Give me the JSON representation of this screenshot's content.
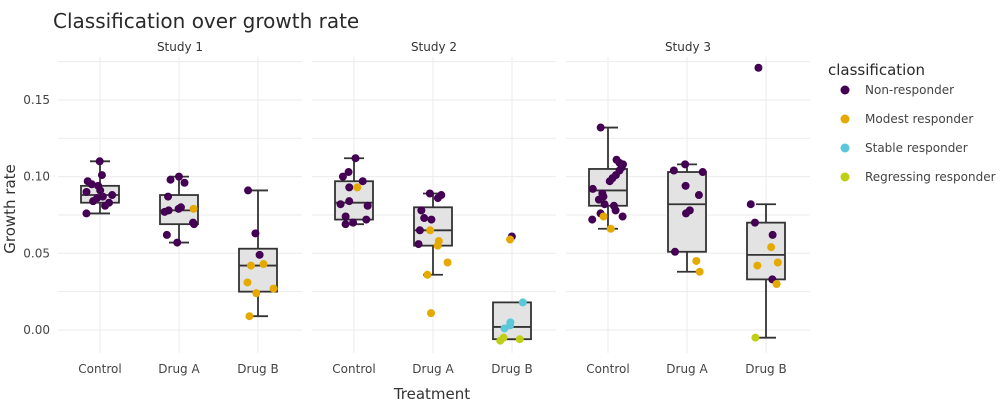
{
  "chart_data": {
    "type": "box",
    "title": "Classification over growth rate",
    "xlabel": "Treatment",
    "ylabel": "Growth rate",
    "ylim": [
      -0.015,
      0.178
    ],
    "yticks": [
      "0.00",
      "0.05",
      "0.10",
      "0.15"
    ],
    "categories": [
      "Control",
      "Drug A",
      "Drug B"
    ],
    "legend": {
      "title": "classification",
      "position": "right",
      "items": [
        {
          "name": "Non-responder",
          "color": "#440154"
        },
        {
          "name": "Modest responder",
          "color": "#E6A902"
        },
        {
          "name": "Stable responder",
          "color": "#5BC8D9"
        },
        {
          "name": "Regressing responder",
          "color": "#BFCF16"
        }
      ]
    },
    "panels": [
      {
        "label": "Study 1",
        "boxes": [
          {
            "category": "Control",
            "min": 0.076,
            "q1": 0.083,
            "median": 0.088,
            "q3": 0.094,
            "max": 0.11,
            "points": [
              {
                "y": 0.11,
                "class": "Non-responder"
              },
              {
                "y": 0.101,
                "class": "Non-responder"
              },
              {
                "y": 0.097,
                "class": "Non-responder"
              },
              {
                "y": 0.095,
                "class": "Non-responder"
              },
              {
                "y": 0.094,
                "class": "Non-responder"
              },
              {
                "y": 0.091,
                "class": "Non-responder"
              },
              {
                "y": 0.09,
                "class": "Non-responder"
              },
              {
                "y": 0.088,
                "class": "Non-responder"
              },
              {
                "y": 0.087,
                "class": "Non-responder"
              },
              {
                "y": 0.086,
                "class": "Non-responder"
              },
              {
                "y": 0.084,
                "class": "Non-responder"
              },
              {
                "y": 0.083,
                "class": "Non-responder"
              },
              {
                "y": 0.081,
                "class": "Non-responder"
              },
              {
                "y": 0.076,
                "class": "Non-responder"
              }
            ]
          },
          {
            "category": "Drug A",
            "min": 0.057,
            "q1": 0.069,
            "median": 0.078,
            "q3": 0.088,
            "max": 0.1,
            "points": [
              {
                "y": 0.1,
                "class": "Non-responder"
              },
              {
                "y": 0.098,
                "class": "Non-responder"
              },
              {
                "y": 0.096,
                "class": "Non-responder"
              },
              {
                "y": 0.087,
                "class": "Non-responder"
              },
              {
                "y": 0.08,
                "class": "Non-responder"
              },
              {
                "y": 0.079,
                "class": "Non-responder"
              },
              {
                "y": 0.078,
                "class": "Non-responder"
              },
              {
                "y": 0.077,
                "class": "Non-responder"
              },
              {
                "y": 0.07,
                "class": "Non-responder"
              },
              {
                "y": 0.069,
                "class": "Non-responder"
              },
              {
                "y": 0.062,
                "class": "Non-responder"
              },
              {
                "y": 0.057,
                "class": "Non-responder"
              },
              {
                "y": 0.079,
                "class": "Modest responder"
              }
            ]
          },
          {
            "category": "Drug B",
            "min": 0.009,
            "q1": 0.025,
            "median": 0.042,
            "q3": 0.053,
            "max": 0.091,
            "points": [
              {
                "y": 0.091,
                "class": "Non-responder"
              },
              {
                "y": 0.063,
                "class": "Non-responder"
              },
              {
                "y": 0.049,
                "class": "Non-responder"
              },
              {
                "y": 0.043,
                "class": "Modest responder"
              },
              {
                "y": 0.042,
                "class": "Modest responder"
              },
              {
                "y": 0.031,
                "class": "Modest responder"
              },
              {
                "y": 0.027,
                "class": "Modest responder"
              },
              {
                "y": 0.024,
                "class": "Modest responder"
              },
              {
                "y": 0.009,
                "class": "Modest responder"
              }
            ]
          }
        ]
      },
      {
        "label": "Study 2",
        "boxes": [
          {
            "category": "Control",
            "min": 0.069,
            "q1": 0.072,
            "median": 0.083,
            "q3": 0.097,
            "max": 0.112,
            "points": [
              {
                "y": 0.112,
                "class": "Non-responder"
              },
              {
                "y": 0.103,
                "class": "Non-responder"
              },
              {
                "y": 0.1,
                "class": "Non-responder"
              },
              {
                "y": 0.097,
                "class": "Non-responder"
              },
              {
                "y": 0.093,
                "class": "Non-responder"
              },
              {
                "y": 0.084,
                "class": "Non-responder"
              },
              {
                "y": 0.082,
                "class": "Non-responder"
              },
              {
                "y": 0.081,
                "class": "Non-responder"
              },
              {
                "y": 0.074,
                "class": "Non-responder"
              },
              {
                "y": 0.072,
                "class": "Non-responder"
              },
              {
                "y": 0.07,
                "class": "Non-responder"
              },
              {
                "y": 0.069,
                "class": "Non-responder"
              },
              {
                "y": 0.093,
                "class": "Modest responder"
              }
            ]
          },
          {
            "category": "Drug A",
            "min": 0.036,
            "q1": 0.055,
            "median": 0.065,
            "q3": 0.08,
            "max": 0.089,
            "points": [
              {
                "y": 0.089,
                "class": "Non-responder"
              },
              {
                "y": 0.088,
                "class": "Non-responder"
              },
              {
                "y": 0.086,
                "class": "Non-responder"
              },
              {
                "y": 0.078,
                "class": "Non-responder"
              },
              {
                "y": 0.073,
                "class": "Non-responder"
              },
              {
                "y": 0.072,
                "class": "Non-responder"
              },
              {
                "y": 0.065,
                "class": "Non-responder"
              },
              {
                "y": 0.056,
                "class": "Non-responder"
              },
              {
                "y": 0.065,
                "class": "Modest responder"
              },
              {
                "y": 0.058,
                "class": "Modest responder"
              },
              {
                "y": 0.055,
                "class": "Modest responder"
              },
              {
                "y": 0.044,
                "class": "Modest responder"
              },
              {
                "y": 0.036,
                "class": "Modest responder"
              },
              {
                "y": 0.011,
                "class": "Modest responder"
              }
            ]
          },
          {
            "category": "Drug B",
            "min": -0.006,
            "q1": -0.006,
            "median": 0.002,
            "q3": 0.018,
            "max": 0.018,
            "points": [
              {
                "y": 0.061,
                "class": "Non-responder"
              },
              {
                "y": 0.059,
                "class": "Modest responder"
              },
              {
                "y": 0.018,
                "class": "Stable responder"
              },
              {
                "y": 0.005,
                "class": "Stable responder"
              },
              {
                "y": 0.003,
                "class": "Stable responder"
              },
              {
                "y": 0.001,
                "class": "Stable responder"
              },
              {
                "y": -0.005,
                "class": "Regressing responder"
              },
              {
                "y": -0.006,
                "class": "Regressing responder"
              },
              {
                "y": -0.007,
                "class": "Regressing responder"
              }
            ]
          }
        ]
      },
      {
        "label": "Study 3",
        "boxes": [
          {
            "category": "Control",
            "min": 0.066,
            "q1": 0.081,
            "median": 0.091,
            "q3": 0.105,
            "max": 0.132,
            "points": [
              {
                "y": 0.132,
                "class": "Non-responder"
              },
              {
                "y": 0.111,
                "class": "Non-responder"
              },
              {
                "y": 0.109,
                "class": "Non-responder"
              },
              {
                "y": 0.108,
                "class": "Non-responder"
              },
              {
                "y": 0.106,
                "class": "Non-responder"
              },
              {
                "y": 0.104,
                "class": "Non-responder"
              },
              {
                "y": 0.101,
                "class": "Non-responder"
              },
              {
                "y": 0.099,
                "class": "Non-responder"
              },
              {
                "y": 0.097,
                "class": "Non-responder"
              },
              {
                "y": 0.092,
                "class": "Non-responder"
              },
              {
                "y": 0.089,
                "class": "Non-responder"
              },
              {
                "y": 0.087,
                "class": "Non-responder"
              },
              {
                "y": 0.085,
                "class": "Non-responder"
              },
              {
                "y": 0.082,
                "class": "Non-responder"
              },
              {
                "y": 0.081,
                "class": "Non-responder"
              },
              {
                "y": 0.078,
                "class": "Non-responder"
              },
              {
                "y": 0.076,
                "class": "Non-responder"
              },
              {
                "y": 0.074,
                "class": "Non-responder"
              },
              {
                "y": 0.072,
                "class": "Non-responder"
              },
              {
                "y": 0.074,
                "class": "Modest responder"
              },
              {
                "y": 0.066,
                "class": "Modest responder"
              }
            ]
          },
          {
            "category": "Drug A",
            "min": 0.038,
            "q1": 0.051,
            "median": 0.082,
            "q3": 0.103,
            "max": 0.108,
            "points": [
              {
                "y": 0.108,
                "class": "Non-responder"
              },
              {
                "y": 0.104,
                "class": "Non-responder"
              },
              {
                "y": 0.103,
                "class": "Non-responder"
              },
              {
                "y": 0.094,
                "class": "Non-responder"
              },
              {
                "y": 0.088,
                "class": "Non-responder"
              },
              {
                "y": 0.078,
                "class": "Non-responder"
              },
              {
                "y": 0.076,
                "class": "Non-responder"
              },
              {
                "y": 0.051,
                "class": "Non-responder"
              },
              {
                "y": 0.045,
                "class": "Modest responder"
              },
              {
                "y": 0.038,
                "class": "Modest responder"
              }
            ]
          },
          {
            "category": "Drug B",
            "min": -0.005,
            "q1": 0.033,
            "median": 0.049,
            "q3": 0.07,
            "max": 0.082,
            "points": [
              {
                "y": 0.171,
                "class": "Non-responder"
              },
              {
                "y": 0.082,
                "class": "Non-responder"
              },
              {
                "y": 0.07,
                "class": "Non-responder"
              },
              {
                "y": 0.062,
                "class": "Non-responder"
              },
              {
                "y": 0.033,
                "class": "Non-responder"
              },
              {
                "y": 0.054,
                "class": "Modest responder"
              },
              {
                "y": 0.044,
                "class": "Modest responder"
              },
              {
                "y": 0.042,
                "class": "Modest responder"
              },
              {
                "y": 0.03,
                "class": "Modest responder"
              },
              {
                "y": -0.005,
                "class": "Regressing responder"
              }
            ]
          }
        ]
      }
    ]
  }
}
